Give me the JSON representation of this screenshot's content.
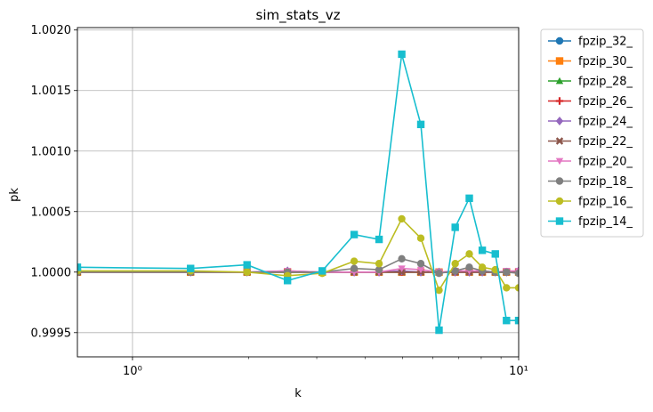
{
  "chart_data": {
    "type": "line",
    "title": "sim_stats_vz",
    "xlabel": "k",
    "ylabel": "pk",
    "xscale": "log",
    "xlim": [
      0.72,
      10
    ],
    "ylim": [
      0.9993,
      1.00202
    ],
    "x_ticks": [
      1,
      10
    ],
    "x_tick_labels": [
      "10⁰",
      "10¹"
    ],
    "y_ticks": [
      0.9995,
      1.0,
      1.0005,
      1.001,
      1.0015,
      1.002
    ],
    "y_tick_labels": [
      "0.9995",
      "1.0000",
      "1.0005",
      "1.0010",
      "1.0015",
      "1.0020"
    ],
    "grid": true,
    "legend_position": "outside-right-top",
    "x": [
      0.72,
      1.414,
      1.98,
      2.52,
      3.1,
      3.75,
      4.35,
      4.98,
      5.58,
      6.22,
      6.85,
      7.45,
      8.05,
      8.7,
      9.3,
      10.0
    ],
    "series": [
      {
        "name": "fpzip_32_",
        "color": "#1f77b4",
        "marker": "circle",
        "values": [
          1.0,
          1.0,
          1.0,
          1.0,
          1.0,
          1.0,
          1.0,
          1.0,
          1.0,
          1.0,
          1.0,
          1.0,
          1.0,
          1.0,
          1.0,
          1.0
        ]
      },
      {
        "name": "fpzip_30_",
        "color": "#ff7f0e",
        "marker": "square",
        "values": [
          1.0,
          1.0,
          1.0,
          1.0,
          1.0,
          1.0,
          1.0,
          1.0,
          1.0,
          1.0,
          1.0,
          1.0,
          1.0,
          1.0,
          1.0,
          1.0
        ]
      },
      {
        "name": "fpzip_28_",
        "color": "#2ca02c",
        "marker": "triangle-up",
        "values": [
          1.0,
          1.0,
          1.0,
          1.0,
          1.0,
          1.0,
          1.0,
          1.0,
          1.0,
          1.0,
          1.0,
          1.0,
          1.0,
          1.0,
          1.0,
          1.0
        ]
      },
      {
        "name": "fpzip_26_",
        "color": "#d62728",
        "marker": "plus",
        "values": [
          1.0,
          1.0,
          1.0,
          1.0,
          1.0,
          1.0,
          1.0,
          1.0,
          1.0,
          1.0,
          1.0,
          1.0,
          1.0,
          1.0,
          1.0,
          1.0
        ]
      },
      {
        "name": "fpzip_24_",
        "color": "#9467bd",
        "marker": "diamond",
        "values": [
          1.0,
          1.0,
          1.0,
          1.00001,
          1.0,
          1.0,
          1.0,
          1.00001,
          1.0,
          1.0,
          1.0,
          1.0,
          1.0,
          1.0,
          1.0,
          1.00001
        ]
      },
      {
        "name": "fpzip_22_",
        "color": "#8c564b",
        "marker": "x",
        "values": [
          1.0,
          1.0,
          1.0,
          1.0,
          1.0,
          1.0,
          1.0,
          1.0,
          1.0,
          1.0,
          1.0,
          1.0,
          1.0,
          1.0,
          1.0,
          1.0
        ]
      },
      {
        "name": "fpzip_20_",
        "color": "#e377c2",
        "marker": "triangle-down",
        "values": [
          1.0,
          1.0,
          1.0,
          1.00001,
          1.0,
          1.0,
          1.0,
          1.00003,
          1.00002,
          1.0,
          1.00001,
          1.00001,
          1.00001,
          1.0,
          1.00001,
          1.00001
        ]
      },
      {
        "name": "fpzip_18_",
        "color": "#7f7f7f",
        "marker": "circle",
        "values": [
          1.0,
          1.0,
          1.0,
          1.0,
          1.0,
          1.00003,
          1.00002,
          1.00011,
          1.00007,
          0.99999,
          1.00001,
          1.00004,
          1.00001,
          1.0,
          1.0,
          0.99999
        ]
      },
      {
        "name": "fpzip_16_",
        "color": "#bcbd22",
        "marker": "circle",
        "values": [
          1.00001,
          1.00001,
          1.0,
          0.99997,
          0.99999,
          1.00009,
          1.00007,
          1.00044,
          1.00028,
          0.99985,
          1.00007,
          1.00015,
          1.00004,
          1.00002,
          0.99987,
          0.99987
        ]
      },
      {
        "name": "fpzip_14_",
        "color": "#17becf",
        "marker": "square",
        "values": [
          1.00004,
          1.00003,
          1.00006,
          0.99993,
          1.00001,
          1.00031,
          1.00027,
          1.0018,
          1.00122,
          0.99952,
          1.00037,
          1.00061,
          1.00018,
          1.00015,
          0.9996,
          0.9996
        ]
      }
    ]
  }
}
